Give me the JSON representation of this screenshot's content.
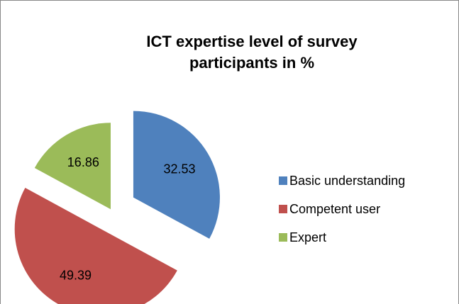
{
  "chart_data": {
    "type": "pie",
    "title": "ICT expertise level of survey participants in %",
    "categories": [
      "Basic understanding",
      "Competent user",
      "Expert"
    ],
    "values": [
      32.53,
      49.39,
      16.86
    ],
    "colors": [
      "#4f81bd",
      "#c0504d",
      "#9bbb59"
    ],
    "legend": "right"
  }
}
